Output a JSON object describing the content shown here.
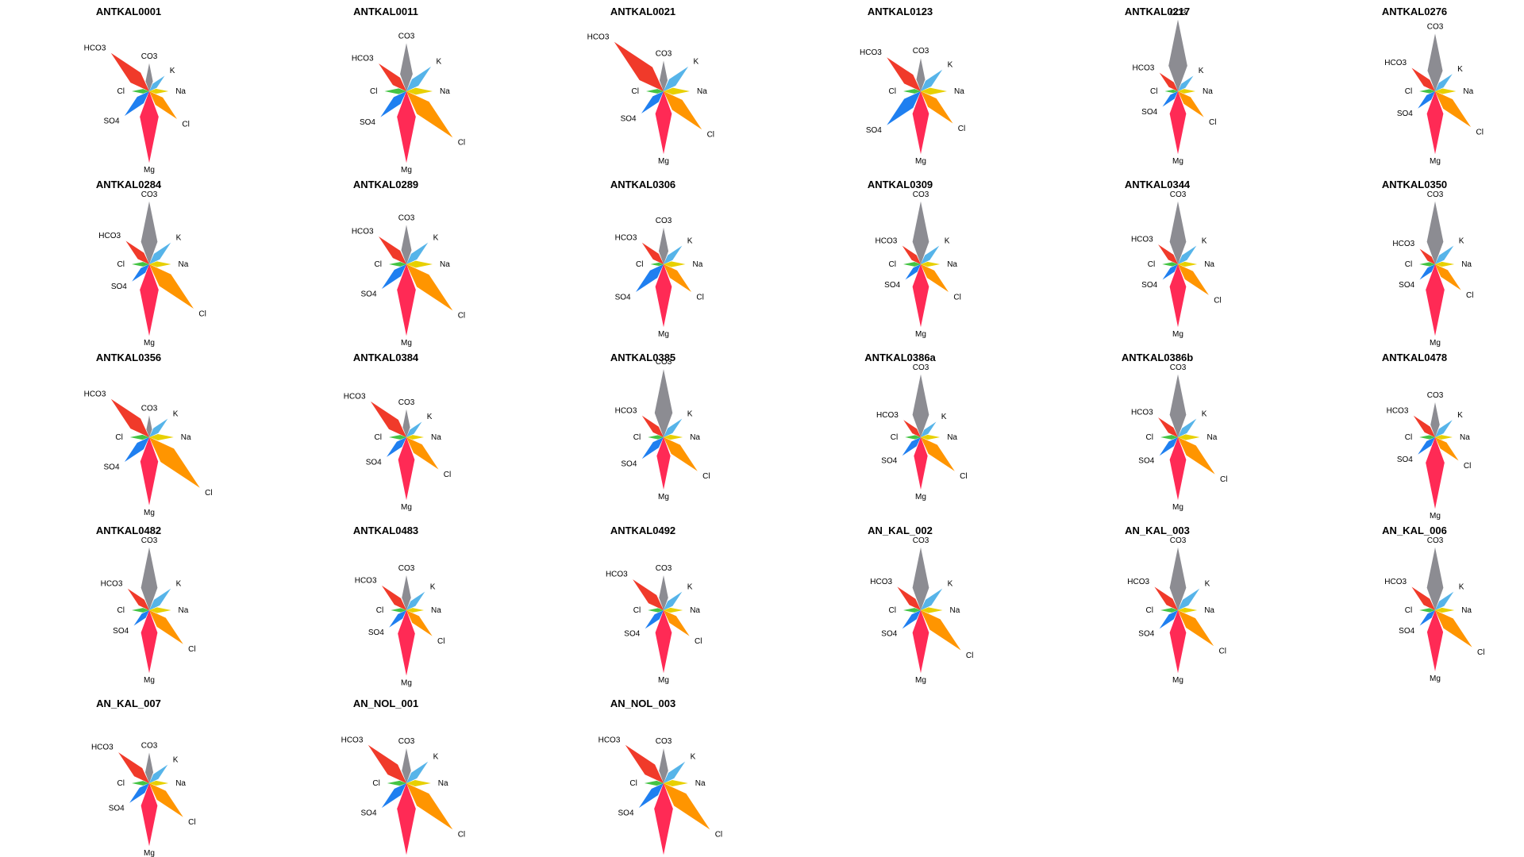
{
  "figure": {
    "description_title": "Hydrochemical star plots"
  },
  "chart_data": {
    "type": "star",
    "axes": [
      "K",
      "Na",
      "Cl",
      "Mg",
      "SO4",
      "Cl",
      "HCO3",
      "CO3"
    ],
    "colors": [
      "#56b4e9",
      "#e8d000",
      "#ff9500",
      "#ff2a55",
      "#1f7ff0",
      "#44c444",
      "#f03a2a",
      "#8c8c92"
    ],
    "scale_max": 1,
    "panels": [
      {
        "title": "ANTKAL0001",
        "values": [
          0.25,
          0.22,
          0.45,
          0.82,
          0.4,
          0.2,
          0.62,
          0.32
        ]
      },
      {
        "title": "ANTKAL0011",
        "values": [
          0.4,
          0.3,
          0.75,
          0.82,
          0.42,
          0.25,
          0.45,
          0.55
        ]
      },
      {
        "title": "ANTKAL0021",
        "values": [
          0.4,
          0.3,
          0.62,
          0.72,
          0.36,
          0.2,
          0.8,
          0.35
        ]
      },
      {
        "title": "ANTKAL0123",
        "values": [
          0.35,
          0.3,
          0.52,
          0.72,
          0.55,
          0.2,
          0.55,
          0.38
        ]
      },
      {
        "title": "ANTKAL0217",
        "values": [
          0.25,
          0.2,
          0.42,
          0.72,
          0.25,
          0.15,
          0.3,
          0.82
        ]
      },
      {
        "title": "ANTKAL0276",
        "values": [
          0.28,
          0.24,
          0.58,
          0.72,
          0.28,
          0.18,
          0.38,
          0.66
        ]
      },
      {
        "title": "ANTKAL0284",
        "values": [
          0.35,
          0.25,
          0.72,
          0.82,
          0.28,
          0.2,
          0.38,
          0.72
        ]
      },
      {
        "title": "ANTKAL0289",
        "values": [
          0.35,
          0.3,
          0.75,
          0.82,
          0.4,
          0.2,
          0.45,
          0.45
        ]
      },
      {
        "title": "ANTKAL0306",
        "values": [
          0.3,
          0.25,
          0.45,
          0.72,
          0.45,
          0.15,
          0.35,
          0.42
        ]
      },
      {
        "title": "ANTKAL0309",
        "values": [
          0.3,
          0.22,
          0.45,
          0.72,
          0.25,
          0.2,
          0.3,
          0.72
        ]
      },
      {
        "title": "ANTKAL0344",
        "values": [
          0.3,
          0.22,
          0.5,
          0.72,
          0.25,
          0.18,
          0.32,
          0.72
        ]
      },
      {
        "title": "ANTKAL0350",
        "values": [
          0.3,
          0.22,
          0.42,
          0.82,
          0.25,
          0.18,
          0.25,
          0.72
        ]
      },
      {
        "title": "ANTKAL0356",
        "values": [
          0.3,
          0.28,
          0.82,
          0.78,
          0.4,
          0.22,
          0.62,
          0.25
        ]
      },
      {
        "title": "ANTKAL0384",
        "values": [
          0.25,
          0.2,
          0.52,
          0.72,
          0.32,
          0.2,
          0.58,
          0.32
        ]
      },
      {
        "title": "ANTKAL0385",
        "values": [
          0.3,
          0.22,
          0.55,
          0.6,
          0.35,
          0.18,
          0.35,
          0.78
        ]
      },
      {
        "title": "ANTKAL0386a",
        "values": [
          0.25,
          0.22,
          0.55,
          0.6,
          0.3,
          0.18,
          0.28,
          0.72
        ]
      },
      {
        "title": "ANTKAL0386b",
        "values": [
          0.3,
          0.25,
          0.6,
          0.72,
          0.3,
          0.2,
          0.32,
          0.72
        ]
      },
      {
        "title": "ANTKAL0478",
        "values": [
          0.28,
          0.2,
          0.38,
          0.82,
          0.28,
          0.18,
          0.35,
          0.4
        ]
      },
      {
        "title": "ANTKAL0482",
        "values": [
          0.35,
          0.25,
          0.55,
          0.72,
          0.25,
          0.2,
          0.35,
          0.72
        ]
      },
      {
        "title": "ANTKAL0483",
        "values": [
          0.3,
          0.2,
          0.42,
          0.75,
          0.28,
          0.18,
          0.4,
          0.4
        ]
      },
      {
        "title": "ANTKAL0492",
        "values": [
          0.3,
          0.22,
          0.42,
          0.72,
          0.3,
          0.18,
          0.5,
          0.4
        ]
      },
      {
        "title": "AN_KAL_002",
        "values": [
          0.35,
          0.25,
          0.65,
          0.72,
          0.3,
          0.2,
          0.38,
          0.72
        ]
      },
      {
        "title": "AN_KAL_003",
        "values": [
          0.35,
          0.22,
          0.58,
          0.72,
          0.3,
          0.2,
          0.38,
          0.72
        ]
      },
      {
        "title": "AN_KAL_006",
        "values": [
          0.3,
          0.22,
          0.6,
          0.7,
          0.25,
          0.18,
          0.38,
          0.72
        ]
      },
      {
        "title": "AN_KAL_007",
        "values": [
          0.3,
          0.22,
          0.55,
          0.72,
          0.32,
          0.2,
          0.5,
          0.35
        ]
      },
      {
        "title": "AN_NOL_001",
        "values": [
          0.35,
          0.28,
          0.75,
          0.82,
          0.4,
          0.22,
          0.62,
          0.4
        ]
      },
      {
        "title": "AN_NOL_003",
        "values": [
          0.35,
          0.28,
          0.75,
          0.82,
          0.4,
          0.22,
          0.62,
          0.4
        ]
      }
    ]
  }
}
